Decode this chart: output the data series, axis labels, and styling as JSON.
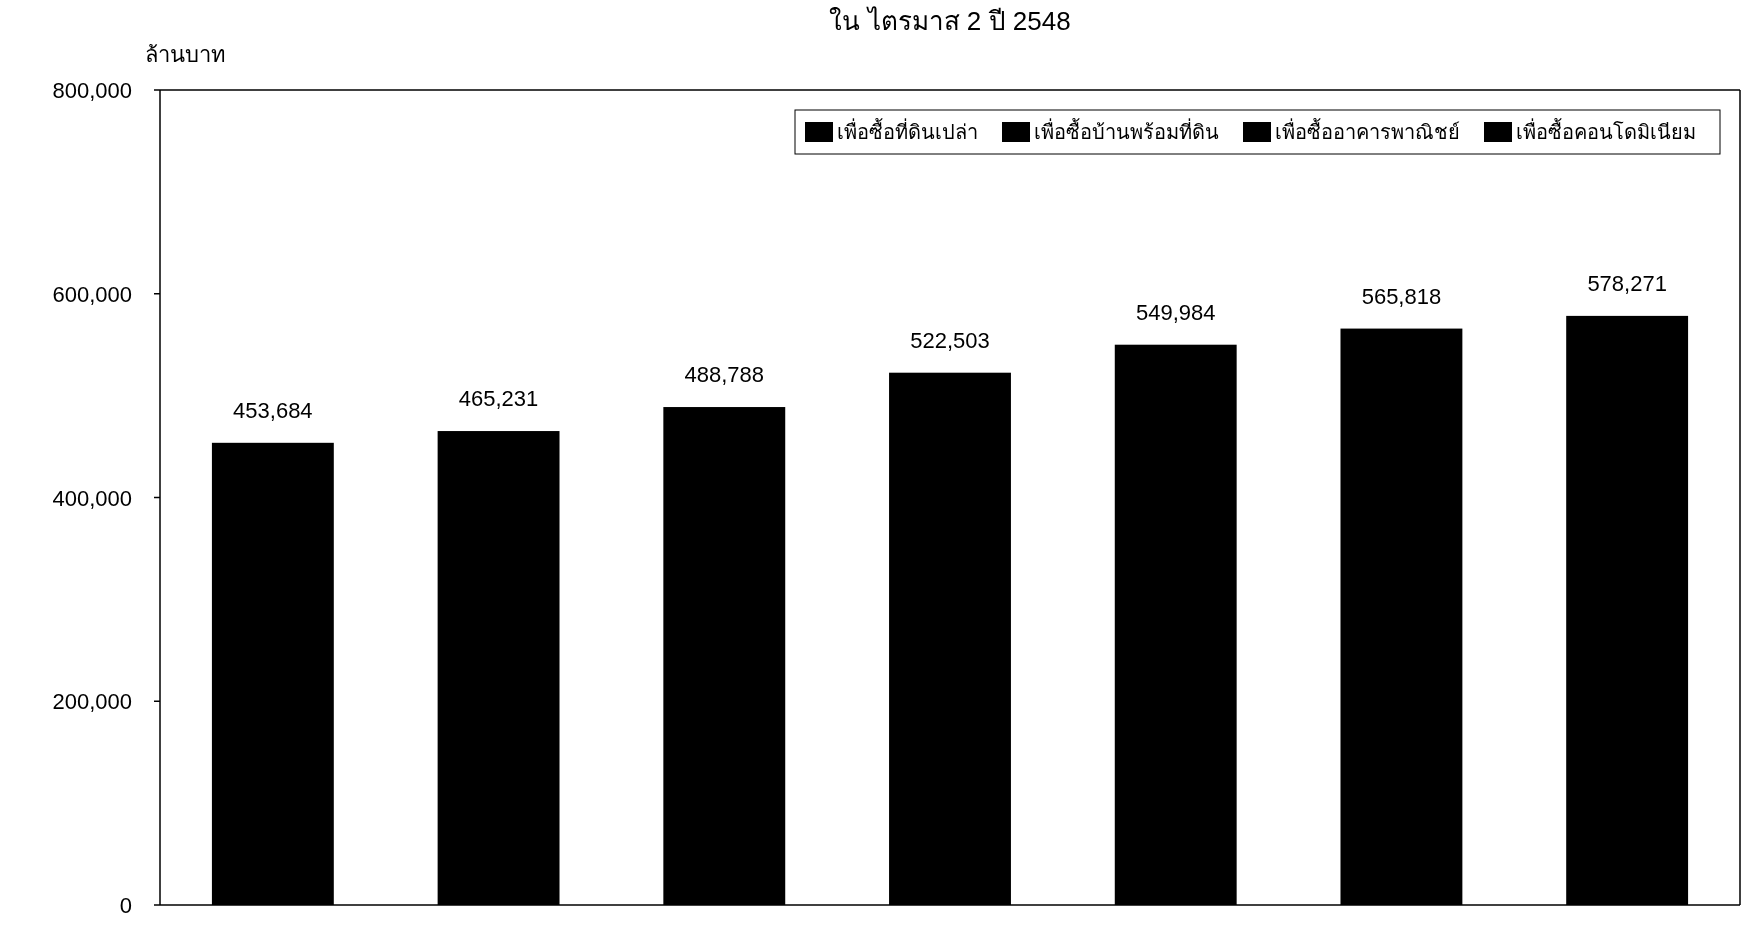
{
  "chart_data": {
    "type": "bar",
    "title": "ใน ไตรมาส 2 ปี 2548",
    "ylabel": "ล้านบาท",
    "categories": [
      null,
      null,
      null,
      null,
      null,
      null,
      null
    ],
    "series": [
      {
        "name": "เพื่อซื้อที่ดินเปล่า",
        "color": "#000000",
        "values": [
          453684,
          465231,
          488788,
          522503,
          549984,
          565818,
          578271
        ],
        "value_labels": [
          "453,684",
          "465,231",
          "488,788",
          "522,503",
          "549,984",
          "565,818",
          "578,271"
        ]
      },
      {
        "name": "เพื่อซื้อบ้านพร้อมที่ดิน",
        "color": "#000000",
        "values": [
          null,
          null,
          null,
          null,
          null,
          null,
          null
        ]
      },
      {
        "name": "เพื่อซื้ออาคารพาณิชย์",
        "color": "#000000",
        "values": [
          null,
          null,
          null,
          null,
          null,
          null,
          null
        ]
      },
      {
        "name": "เพื่อซื้อคอนโดมิเนียม",
        "color": "#000000",
        "values": [
          null,
          null,
          null,
          null,
          null,
          null,
          null
        ]
      }
    ],
    "ylim": [
      0,
      800000
    ],
    "yticks": [
      {
        "value": 0,
        "label": "0"
      },
      {
        "value": 200000,
        "label": "200,000"
      },
      {
        "value": 400000,
        "label": "400,000"
      },
      {
        "value": 600000,
        "label": "600,000"
      },
      {
        "value": 800000,
        "label": "800,000"
      }
    ],
    "tick_labels": "y",
    "grid": false,
    "legend": "top right"
  }
}
